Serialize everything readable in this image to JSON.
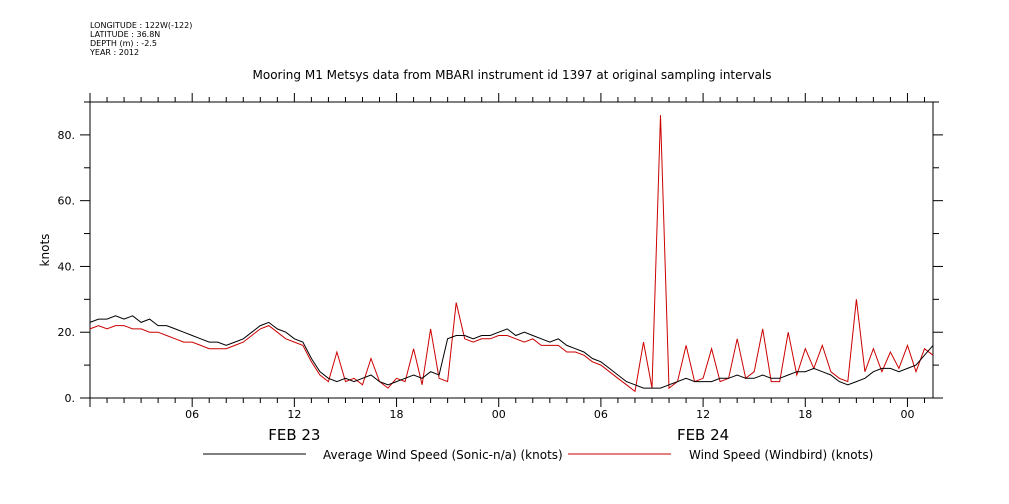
{
  "header": {
    "metadata": [
      "LONGITUDE : 122W(-122)",
      "LATITUDE : 36.8N",
      "DEPTH (m) : -2.5",
      "YEAR : 2012"
    ],
    "title": "Mooring M1 Metsys data from MBARI instrument id 1397 at original sampling intervals"
  },
  "chart_data": {
    "type": "line",
    "title": "Mooring M1 Metsys data from MBARI instrument id 1397 at original sampling intervals",
    "xlabel": "",
    "ylabel": "knots",
    "xlim": [
      "2012-02-23 00:00",
      "2012-02-25 01:30"
    ],
    "ylim": [
      0,
      90
    ],
    "y_ticks": [
      0,
      20,
      40,
      60,
      80
    ],
    "y_tick_labels": [
      "0.",
      "20.",
      "40.",
      "60.",
      "80."
    ],
    "x_tick_labels": [
      "06",
      "12",
      "18",
      "00",
      "06",
      "12",
      "18",
      "00"
    ],
    "x_tick_times": [
      "2012-02-23 06:00",
      "2012-02-23 12:00",
      "2012-02-23 18:00",
      "2012-02-24 00:00",
      "2012-02-24 06:00",
      "2012-02-24 12:00",
      "2012-02-24 18:00",
      "2012-02-25 00:00"
    ],
    "date_labels": [
      "FEB 23",
      "FEB 24"
    ],
    "date_label_times": [
      "2012-02-23 12:00",
      "2012-02-24 12:00"
    ],
    "grid": false,
    "legend_position": "bottom",
    "series": [
      {
        "name": "Average Wind Speed (Sonic-n/a) (knots)",
        "color": "#000000",
        "x": [
          "2012-02-23 00:00",
          "2012-02-23 00:30",
          "2012-02-23 01:00",
          "2012-02-23 01:30",
          "2012-02-23 02:00",
          "2012-02-23 02:30",
          "2012-02-23 03:00",
          "2012-02-23 03:30",
          "2012-02-23 04:00",
          "2012-02-23 04:30",
          "2012-02-23 05:00",
          "2012-02-23 05:30",
          "2012-02-23 06:00",
          "2012-02-23 06:30",
          "2012-02-23 07:00",
          "2012-02-23 07:30",
          "2012-02-23 08:00",
          "2012-02-23 08:30",
          "2012-02-23 09:00",
          "2012-02-23 09:30",
          "2012-02-23 10:00",
          "2012-02-23 10:30",
          "2012-02-23 11:00",
          "2012-02-23 11:30",
          "2012-02-23 12:00",
          "2012-02-23 12:30",
          "2012-02-23 13:00",
          "2012-02-23 13:30",
          "2012-02-23 14:00",
          "2012-02-23 14:30",
          "2012-02-23 15:00",
          "2012-02-23 15:30",
          "2012-02-23 16:00",
          "2012-02-23 16:30",
          "2012-02-23 17:00",
          "2012-02-23 17:30",
          "2012-02-23 18:00",
          "2012-02-23 18:30",
          "2012-02-23 19:00",
          "2012-02-23 19:30",
          "2012-02-23 20:00",
          "2012-02-23 20:30",
          "2012-02-23 21:00",
          "2012-02-23 21:30",
          "2012-02-23 22:00",
          "2012-02-23 22:30",
          "2012-02-23 23:00",
          "2012-02-23 23:30",
          "2012-02-24 00:00",
          "2012-02-24 00:30",
          "2012-02-24 01:00",
          "2012-02-24 01:30",
          "2012-02-24 02:00",
          "2012-02-24 02:30",
          "2012-02-24 03:00",
          "2012-02-24 03:30",
          "2012-02-24 04:00",
          "2012-02-24 04:30",
          "2012-02-24 05:00",
          "2012-02-24 05:30",
          "2012-02-24 06:00",
          "2012-02-24 06:30",
          "2012-02-24 07:00",
          "2012-02-24 07:30",
          "2012-02-24 08:00",
          "2012-02-24 08:30",
          "2012-02-24 09:00",
          "2012-02-24 09:30",
          "2012-02-24 10:00",
          "2012-02-24 10:30",
          "2012-02-24 11:00",
          "2012-02-24 11:30",
          "2012-02-24 12:00",
          "2012-02-24 12:30",
          "2012-02-24 13:00",
          "2012-02-24 13:30",
          "2012-02-24 14:00",
          "2012-02-24 14:30",
          "2012-02-24 15:00",
          "2012-02-24 15:30",
          "2012-02-24 16:00",
          "2012-02-24 16:30",
          "2012-02-24 17:00",
          "2012-02-24 17:30",
          "2012-02-24 18:00",
          "2012-02-24 18:30",
          "2012-02-24 19:00",
          "2012-02-24 19:30",
          "2012-02-24 20:00",
          "2012-02-24 20:30",
          "2012-02-24 21:00",
          "2012-02-24 21:30",
          "2012-02-24 22:00",
          "2012-02-24 22:30",
          "2012-02-24 23:00",
          "2012-02-24 23:30",
          "2012-02-25 00:00",
          "2012-02-25 00:30",
          "2012-02-25 01:00",
          "2012-02-25 01:30"
        ],
        "values": [
          23,
          24,
          24,
          25,
          24,
          25,
          23,
          24,
          22,
          22,
          21,
          20,
          19,
          18,
          17,
          17,
          16,
          17,
          18,
          20,
          22,
          23,
          21,
          20,
          18,
          17,
          12,
          8,
          6,
          5,
          6,
          5,
          6,
          7,
          5,
          4,
          5,
          6,
          7,
          6,
          8,
          7,
          18,
          19,
          19,
          18,
          19,
          19,
          20,
          21,
          19,
          20,
          19,
          18,
          17,
          18,
          16,
          15,
          14,
          12,
          11,
          9,
          7,
          5,
          4,
          3,
          3,
          3,
          4,
          5,
          6,
          5,
          5,
          5,
          6,
          6,
          7,
          6,
          6,
          7,
          6,
          6,
          7,
          8,
          8,
          9,
          8,
          7,
          5,
          4,
          5,
          6,
          8,
          9,
          9,
          8,
          9,
          10,
          13,
          16
        ]
      },
      {
        "name": "Wind Speed (Windbird) (knots)",
        "color": "#cc0000",
        "x": [
          "2012-02-23 00:00",
          "2012-02-23 00:30",
          "2012-02-23 01:00",
          "2012-02-23 01:30",
          "2012-02-23 02:00",
          "2012-02-23 02:30",
          "2012-02-23 03:00",
          "2012-02-23 03:30",
          "2012-02-23 04:00",
          "2012-02-23 04:30",
          "2012-02-23 05:00",
          "2012-02-23 05:30",
          "2012-02-23 06:00",
          "2012-02-23 06:30",
          "2012-02-23 07:00",
          "2012-02-23 07:30",
          "2012-02-23 08:00",
          "2012-02-23 08:30",
          "2012-02-23 09:00",
          "2012-02-23 09:30",
          "2012-02-23 10:00",
          "2012-02-23 10:30",
          "2012-02-23 11:00",
          "2012-02-23 11:30",
          "2012-02-23 12:00",
          "2012-02-23 12:30",
          "2012-02-23 13:00",
          "2012-02-23 13:30",
          "2012-02-23 14:00",
          "2012-02-23 14:30",
          "2012-02-23 15:00",
          "2012-02-23 15:30",
          "2012-02-23 16:00",
          "2012-02-23 16:30",
          "2012-02-23 17:00",
          "2012-02-23 17:30",
          "2012-02-23 18:00",
          "2012-02-23 18:30",
          "2012-02-23 19:00",
          "2012-02-23 19:30",
          "2012-02-23 20:00",
          "2012-02-23 20:30",
          "2012-02-23 21:00",
          "2012-02-23 21:30",
          "2012-02-23 22:00",
          "2012-02-23 22:30",
          "2012-02-23 23:00",
          "2012-02-23 23:30",
          "2012-02-24 00:00",
          "2012-02-24 00:30",
          "2012-02-24 01:00",
          "2012-02-24 01:30",
          "2012-02-24 02:00",
          "2012-02-24 02:30",
          "2012-02-24 03:00",
          "2012-02-24 03:30",
          "2012-02-24 04:00",
          "2012-02-24 04:30",
          "2012-02-24 05:00",
          "2012-02-24 05:30",
          "2012-02-24 06:00",
          "2012-02-24 06:30",
          "2012-02-24 07:00",
          "2012-02-24 07:30",
          "2012-02-24 08:00",
          "2012-02-24 08:30",
          "2012-02-24 09:00",
          "2012-02-24 09:30",
          "2012-02-24 10:00",
          "2012-02-24 10:30",
          "2012-02-24 11:00",
          "2012-02-24 11:30",
          "2012-02-24 12:00",
          "2012-02-24 12:30",
          "2012-02-24 13:00",
          "2012-02-24 13:30",
          "2012-02-24 14:00",
          "2012-02-24 14:30",
          "2012-02-24 15:00",
          "2012-02-24 15:30",
          "2012-02-24 16:00",
          "2012-02-24 16:30",
          "2012-02-24 17:00",
          "2012-02-24 17:30",
          "2012-02-24 18:00",
          "2012-02-24 18:30",
          "2012-02-24 19:00",
          "2012-02-24 19:30",
          "2012-02-24 20:00",
          "2012-02-24 20:30",
          "2012-02-24 21:00",
          "2012-02-24 21:30",
          "2012-02-24 22:00",
          "2012-02-24 22:30",
          "2012-02-24 23:00",
          "2012-02-24 23:30",
          "2012-02-25 00:00",
          "2012-02-25 00:30",
          "2012-02-25 01:00",
          "2012-02-25 01:30"
        ],
        "values": [
          21,
          22,
          21,
          22,
          22,
          21,
          21,
          20,
          20,
          19,
          18,
          17,
          17,
          16,
          15,
          15,
          15,
          16,
          17,
          19,
          21,
          22,
          20,
          18,
          17,
          16,
          11,
          7,
          5,
          14,
          5,
          6,
          4,
          12,
          5,
          3,
          6,
          5,
          15,
          4,
          21,
          6,
          5,
          29,
          18,
          17,
          18,
          18,
          19,
          19,
          18,
          17,
          18,
          16,
          16,
          16,
          14,
          14,
          13,
          11,
          10,
          8,
          6,
          4,
          2,
          17,
          3,
          86,
          3,
          5,
          16,
          5,
          6,
          15,
          5,
          6,
          18,
          6,
          8,
          21,
          5,
          5,
          20,
          7,
          15,
          9,
          16,
          8,
          6,
          5,
          30,
          8,
          15,
          8,
          14,
          9,
          16,
          8,
          15,
          13
        ]
      }
    ]
  }
}
